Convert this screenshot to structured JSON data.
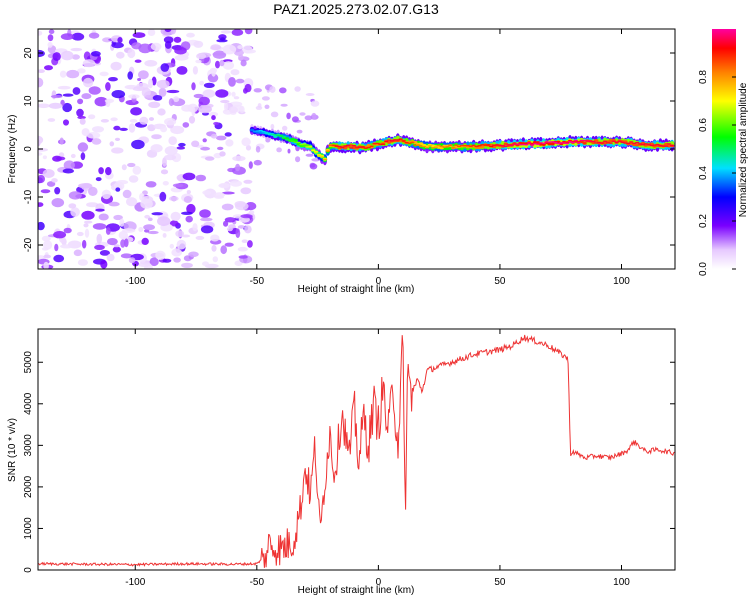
{
  "title": "PAZ1.2025.273.02.07.G13",
  "chart_data": [
    {
      "type": "heatmap",
      "name": "spectrogram",
      "xlabel": "Height of straight line (km)",
      "ylabel": "Frequency (Hz)",
      "xlim": [
        -140,
        122
      ],
      "ylim": [
        -25,
        25
      ],
      "xticks": [
        -100,
        -50,
        0,
        50,
        100
      ],
      "xtick_labels": [
        "-100",
        "-50",
        "0",
        "50",
        "100"
      ],
      "yticks": [
        -20,
        -10,
        0,
        10,
        20
      ],
      "ytick_labels": [
        "-20",
        "-10",
        "0",
        "10",
        "20"
      ],
      "noise_region": {
        "x_from": -140,
        "x_to": -52,
        "description_value": "scattered low amplitude"
      },
      "signal_track": {
        "x": [
          -52,
          -48,
          -44,
          -40,
          -36,
          -32,
          -28,
          -24,
          -22,
          -20,
          -16,
          -12,
          -8,
          -4,
          0,
          4,
          8,
          12,
          16,
          20,
          30,
          40,
          50,
          60,
          70,
          80,
          90,
          100,
          110,
          122
        ],
        "freq": [
          4,
          3.5,
          3,
          2.5,
          2,
          1,
          0.5,
          -1.5,
          -2,
          0.5,
          0.5,
          0.5,
          0.3,
          0.5,
          1,
          1.5,
          2,
          1.5,
          1,
          0.5,
          0.5,
          0.5,
          0.8,
          1,
          1.2,
          1.5,
          1.5,
          1.5,
          0.8,
          0.8
        ],
        "amplitude": [
          0.35,
          0.4,
          0.45,
          0.5,
          0.55,
          0.6,
          0.65,
          0.7,
          0.75,
          0.8,
          0.9,
          0.9,
          0.9,
          0.85,
          0.85,
          0.9,
          0.9,
          0.85,
          0.8,
          0.75,
          0.8,
          0.85,
          0.9,
          0.95,
          0.95,
          0.95,
          0.9,
          0.9,
          0.9,
          0.9
        ]
      }
    },
    {
      "type": "colorbar",
      "name": "colorbar",
      "label": "Normalized spectral amplitude",
      "ticks": [
        0.0,
        0.2,
        0.4,
        0.6,
        0.8
      ],
      "tick_labels": [
        "0.0",
        "0.2",
        "0.4",
        "0.6",
        "0.8"
      ],
      "range": [
        0,
        1
      ],
      "stops": [
        {
          "v": 0.0,
          "color": "#ffffff"
        },
        {
          "v": 0.08,
          "color": "#e6c8ff"
        },
        {
          "v": 0.18,
          "color": "#7a00ff"
        },
        {
          "v": 0.3,
          "color": "#0000ff"
        },
        {
          "v": 0.42,
          "color": "#00e0ff"
        },
        {
          "v": 0.55,
          "color": "#00ff00"
        },
        {
          "v": 0.7,
          "color": "#ffff00"
        },
        {
          "v": 0.82,
          "color": "#ff8000"
        },
        {
          "v": 0.92,
          "color": "#ff0000"
        },
        {
          "v": 1.0,
          "color": "#ff00a0"
        }
      ]
    },
    {
      "type": "line",
      "name": "snr",
      "xlabel": "Height of straight line (km)",
      "ylabel": "SNR (10 * v/v)",
      "xlim": [
        -140,
        122
      ],
      "ylim": [
        0,
        5800
      ],
      "xticks": [
        -100,
        -50,
        0,
        50,
        100
      ],
      "xtick_labels": [
        "-100",
        "-50",
        "0",
        "50",
        "100"
      ],
      "yticks": [
        0,
        1000,
        2000,
        3000,
        4000,
        5000
      ],
      "ytick_labels": [
        "0",
        "1000",
        "2000",
        "3000",
        "4000",
        "5000"
      ],
      "color": "#ee3333",
      "series": [
        {
          "name": "SNR",
          "x": [
            -140,
            -120,
            -100,
            -80,
            -60,
            -50,
            -47,
            -45,
            -40,
            -35,
            -32,
            -30,
            -28,
            -26,
            -24,
            -22,
            -20,
            -18,
            -15,
            -12,
            -10,
            -8,
            -6,
            -4,
            -2,
            0,
            2,
            4,
            6,
            8,
            10,
            11,
            12,
            14,
            16,
            18,
            20,
            25,
            30,
            35,
            40,
            45,
            50,
            55,
            60,
            65,
            70,
            75,
            78,
            79,
            80,
            85,
            90,
            95,
            100,
            103,
            105,
            110,
            115,
            122
          ],
          "y": [
            150,
            140,
            130,
            150,
            140,
            150,
            300,
            600,
            500,
            700,
            1500,
            2500,
            1800,
            3000,
            800,
            2200,
            3300,
            2300,
            3800,
            2700,
            3900,
            2600,
            3700,
            3000,
            4000,
            3500,
            4400,
            3200,
            4500,
            3000,
            5500,
            1300,
            4700,
            4200,
            4600,
            4300,
            4800,
            4900,
            5000,
            5100,
            5200,
            5250,
            5300,
            5400,
            5600,
            5500,
            5400,
            5200,
            5100,
            2800,
            2850,
            2700,
            2750,
            2700,
            2800,
            2900,
            3100,
            2850,
            2900,
            2800
          ]
        }
      ]
    }
  ]
}
